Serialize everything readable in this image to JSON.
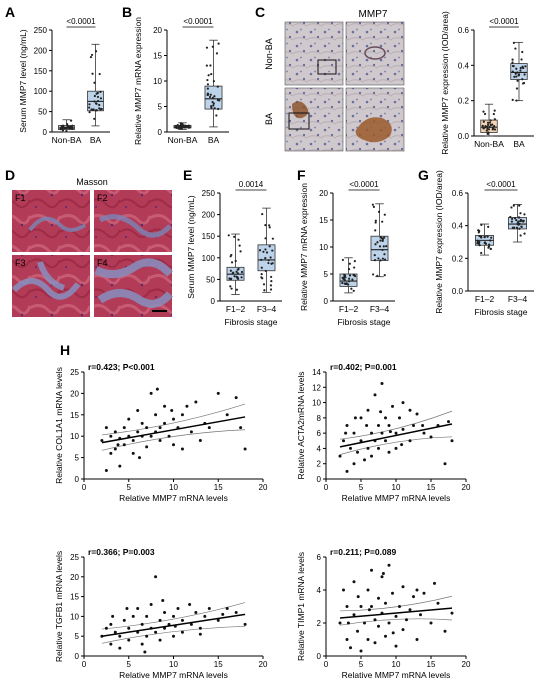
{
  "colors": {
    "box_blue": "#bcd3ea",
    "box_orange": "#f7d4b5",
    "box_stroke": "#333333",
    "dot": "#222222",
    "masson_red": "#b4324d",
    "masson_blue": "#7b86b8",
    "ihc_brown": "#8a4f25",
    "ihc_bg": "#c9c3c8"
  },
  "panel_letters": [
    "A",
    "B",
    "C",
    "D",
    "E",
    "F",
    "G",
    "H"
  ],
  "images": {
    "c_title": "MMP7",
    "c_rows": [
      "Non-BA",
      "BA"
    ],
    "d_title": "Masson",
    "d_labels": [
      "F1",
      "F2",
      "F3",
      "F4"
    ]
  },
  "chart_data": [
    {
      "id": "A",
      "type": "box",
      "ylabel": "Serum MMP7 level (ng/mL)",
      "categories": [
        "Non-BA",
        "BA"
      ],
      "yticks": [
        0,
        50,
        100,
        150,
        200,
        250
      ],
      "ylim": [
        0,
        250
      ],
      "p_text": "<0.0001",
      "box_colors": [
        "#bcd3ea",
        "#bcd3ea"
      ],
      "groups": [
        {
          "name": "Non-BA",
          "min": 0,
          "q1": 6,
          "median": 10,
          "q3": 16,
          "max": 30
        },
        {
          "name": "BA",
          "min": 15,
          "q1": 52,
          "median": 75,
          "q3": 100,
          "max": 215
        }
      ]
    },
    {
      "id": "B",
      "type": "box",
      "ylabel": "Relative MMP7 mRNA expression",
      "categories": [
        "Non-BA",
        "BA"
      ],
      "yticks": [
        0,
        5,
        10,
        15,
        20
      ],
      "ylim": [
        0,
        20
      ],
      "p_text": "<0.0001",
      "box_colors": [
        "#bcd3ea",
        "#bcd3ea"
      ],
      "groups": [
        {
          "name": "Non-BA",
          "min": 0.5,
          "q1": 0.8,
          "median": 1.0,
          "q3": 1.3,
          "max": 1.8
        },
        {
          "name": "BA",
          "min": 1,
          "q1": 4.5,
          "median": 6.5,
          "q3": 9,
          "max": 18
        }
      ]
    },
    {
      "id": "C",
      "type": "box",
      "ylabel": "Relative MMP7 expression (IOD/area)",
      "categories": [
        "Non-BA",
        "BA"
      ],
      "yticks": [
        0.0,
        0.2,
        0.4,
        0.6
      ],
      "ylim": [
        0,
        0.6
      ],
      "p_text": "<0.0001",
      "box_colors": [
        "#f7d4b5",
        "#bcd3ea"
      ],
      "groups": [
        {
          "name": "Non-BA",
          "min": 0.0,
          "q1": 0.02,
          "median": 0.05,
          "q3": 0.09,
          "max": 0.18
        },
        {
          "name": "BA",
          "min": 0.2,
          "q1": 0.32,
          "median": 0.36,
          "q3": 0.41,
          "max": 0.53
        }
      ]
    },
    {
      "id": "E",
      "type": "box",
      "ylabel": "Serum MMP7 level (ng/mL)",
      "xlabel": "Fibrosis stage",
      "categories": [
        "F1–2",
        "F3–4"
      ],
      "yticks": [
        0,
        50,
        100,
        150,
        200,
        250
      ],
      "ylim": [
        0,
        250
      ],
      "p_text": "0.0014",
      "box_colors": [
        "#bcd3ea",
        "#bcd3ea"
      ],
      "groups": [
        {
          "name": "F1–2",
          "min": 15,
          "q1": 48,
          "median": 62,
          "q3": 78,
          "max": 155
        },
        {
          "name": "F3–4",
          "min": 20,
          "q1": 70,
          "median": 95,
          "q3": 130,
          "max": 215
        }
      ]
    },
    {
      "id": "F",
      "type": "box",
      "ylabel": "Relative MMP7 mRNA expression",
      "xlabel": "Fibrosis stage",
      "categories": [
        "F1–2",
        "F3–4"
      ],
      "yticks": [
        0,
        5,
        10,
        15,
        20
      ],
      "ylim": [
        0,
        20
      ],
      "p_text": "<0.0001",
      "box_colors": [
        "#bcd3ea",
        "#bcd3ea"
      ],
      "groups": [
        {
          "name": "F1–2",
          "min": 1.5,
          "q1": 2.7,
          "median": 3.7,
          "q3": 5.0,
          "max": 8
        },
        {
          "name": "F3–4",
          "min": 4.5,
          "q1": 7.5,
          "median": 9.5,
          "q3": 12,
          "max": 18
        }
      ]
    },
    {
      "id": "G",
      "type": "box",
      "ylabel": "Relative MMP7 expression (IOD/area)",
      "xlabel": "Fibrosis stage",
      "categories": [
        "F1–2",
        "F3–4"
      ],
      "yticks": [
        0.0,
        0.2,
        0.4,
        0.6
      ],
      "ylim": [
        0,
        0.6
      ],
      "p_text": "<0.0001",
      "box_colors": [
        "#bcd3ea",
        "#bcd3ea"
      ],
      "groups": [
        {
          "name": "F1–2",
          "min": 0.22,
          "q1": 0.28,
          "median": 0.31,
          "q3": 0.34,
          "max": 0.41
        },
        {
          "name": "F3–4",
          "min": 0.3,
          "q1": 0.38,
          "median": 0.41,
          "q3": 0.45,
          "max": 0.53
        }
      ]
    },
    {
      "id": "H1",
      "type": "scatter",
      "annotation": "r=0.423; P<0.001",
      "xlabel": "Relative MMP7 mRNA levels",
      "ylabel": "Relative COL1A1 mRNA levels",
      "xticks": [
        0,
        5,
        10,
        15,
        20
      ],
      "yticks": [
        0,
        5,
        10,
        15,
        20,
        25
      ],
      "xlim": [
        0,
        20
      ],
      "ylim": [
        0,
        25
      ],
      "fit": {
        "x0": 2,
        "y0": 8.5,
        "x1": 18,
        "y1": 14.5
      },
      "points": [
        [
          2,
          9
        ],
        [
          2.5,
          2
        ],
        [
          3,
          6
        ],
        [
          3,
          10
        ],
        [
          3.5,
          11
        ],
        [
          3.5,
          7
        ],
        [
          4,
          3
        ],
        [
          4,
          9.5
        ],
        [
          4.5,
          12
        ],
        [
          4.5,
          8
        ],
        [
          5,
          10
        ],
        [
          5,
          14
        ],
        [
          5.5,
          9
        ],
        [
          5.5,
          6
        ],
        [
          6,
          11
        ],
        [
          6,
          16
        ],
        [
          6.5,
          10
        ],
        [
          6.5,
          13
        ],
        [
          7,
          12
        ],
        [
          7,
          7.5
        ],
        [
          7.5,
          10
        ],
        [
          7.5,
          20
        ],
        [
          8,
          11
        ],
        [
          8,
          15
        ],
        [
          8.5,
          12
        ],
        [
          8.5,
          9
        ],
        [
          9,
          13
        ],
        [
          9,
          17
        ],
        [
          9.5,
          10
        ],
        [
          10,
          14
        ],
        [
          10,
          8
        ],
        [
          10.5,
          12
        ],
        [
          11,
          15
        ],
        [
          11,
          7
        ],
        [
          12,
          11
        ],
        [
          12.5,
          18
        ],
        [
          13,
          9
        ],
        [
          14,
          12
        ],
        [
          15,
          20
        ],
        [
          16,
          15
        ],
        [
          17,
          19
        ],
        [
          17.5,
          12
        ],
        [
          18,
          7
        ],
        [
          2.5,
          12
        ],
        [
          3.8,
          8
        ],
        [
          6.2,
          5
        ],
        [
          8.2,
          21
        ],
        [
          9.8,
          16
        ],
        [
          11.5,
          17
        ],
        [
          13.5,
          13
        ]
      ]
    },
    {
      "id": "H2",
      "type": "scatter",
      "annotation": "r=0.402; P=0.001",
      "xlabel": "Relative MMP7 mRNA levels",
      "ylabel": "Relative ACTA2mRNA levels",
      "xticks": [
        0,
        5,
        10,
        15,
        20
      ],
      "yticks": [
        0,
        2,
        4,
        6,
        8,
        10,
        12,
        14
      ],
      "xlim": [
        0,
        20
      ],
      "ylim": [
        0,
        14
      ],
      "fit": {
        "x0": 2,
        "y0": 4.2,
        "x1": 18,
        "y1": 7.2
      },
      "points": [
        [
          2,
          3
        ],
        [
          2.5,
          5
        ],
        [
          3,
          1
        ],
        [
          3,
          7
        ],
        [
          3.5,
          4
        ],
        [
          4,
          2
        ],
        [
          4,
          6
        ],
        [
          4.5,
          3.5
        ],
        [
          5,
          5
        ],
        [
          5,
          8
        ],
        [
          5.5,
          2.5
        ],
        [
          6,
          4
        ],
        [
          6,
          9
        ],
        [
          6.5,
          6
        ],
        [
          6.5,
          3
        ],
        [
          7,
          5
        ],
        [
          7,
          11
        ],
        [
          7.5,
          7
        ],
        [
          7.5,
          4
        ],
        [
          8,
          6
        ],
        [
          8,
          12.5
        ],
        [
          8.5,
          5
        ],
        [
          8.5,
          8
        ],
        [
          9,
          7
        ],
        [
          9,
          3.5
        ],
        [
          9.5,
          9.5
        ],
        [
          10,
          6
        ],
        [
          10,
          4
        ],
        [
          10.5,
          8
        ],
        [
          11,
          6.5
        ],
        [
          11,
          10
        ],
        [
          12,
          5
        ],
        [
          12.5,
          7
        ],
        [
          13,
          8.5
        ],
        [
          14,
          6
        ],
        [
          15,
          5.5
        ],
        [
          16,
          7
        ],
        [
          17,
          2
        ],
        [
          17.5,
          7.5
        ],
        [
          18,
          5
        ],
        [
          2.8,
          6
        ],
        [
          4.2,
          8
        ],
        [
          5.8,
          7
        ],
        [
          7.8,
          8.8
        ],
        [
          9.2,
          6.2
        ],
        [
          10.8,
          4.5
        ],
        [
          12,
          9
        ],
        [
          13.8,
          7
        ]
      ]
    },
    {
      "id": "H3",
      "type": "scatter",
      "annotation": "r=0.366; P=0.003",
      "xlabel": "Relative MMP7 mRNA levels",
      "ylabel": "Relative TGFB1 mRNA levels",
      "xticks": [
        0,
        5,
        10,
        15,
        20
      ],
      "yticks": [
        0,
        5,
        10,
        15,
        20,
        25
      ],
      "xlim": [
        0,
        20
      ],
      "ylim": [
        0,
        25
      ],
      "fit": {
        "x0": 2,
        "y0": 5,
        "x1": 18,
        "y1": 10.5
      },
      "points": [
        [
          2,
          5
        ],
        [
          2.5,
          7
        ],
        [
          3,
          3
        ],
        [
          3,
          8
        ],
        [
          3.5,
          6
        ],
        [
          4,
          2
        ],
        [
          4,
          5
        ],
        [
          4.5,
          9
        ],
        [
          5,
          4
        ],
        [
          5,
          7
        ],
        [
          5.5,
          10
        ],
        [
          6,
          6
        ],
        [
          6,
          12
        ],
        [
          6.5,
          3
        ],
        [
          6.5,
          8
        ],
        [
          7,
          5
        ],
        [
          7,
          10
        ],
        [
          7.5,
          7
        ],
        [
          7.5,
          13
        ],
        [
          8,
          6
        ],
        [
          8,
          20
        ],
        [
          8.5,
          9
        ],
        [
          8.5,
          4
        ],
        [
          9,
          11
        ],
        [
          9,
          7
        ],
        [
          9.5,
          8
        ],
        [
          10,
          10
        ],
        [
          10,
          5
        ],
        [
          10.5,
          12
        ],
        [
          11,
          9
        ],
        [
          11,
          6
        ],
        [
          12,
          8
        ],
        [
          12.5,
          11
        ],
        [
          13,
          7
        ],
        [
          13.5,
          10
        ],
        [
          14,
          12
        ],
        [
          15,
          9
        ],
        [
          16,
          12
        ],
        [
          17,
          11
        ],
        [
          18,
          8
        ],
        [
          3.2,
          10
        ],
        [
          4.8,
          12
        ],
        [
          6.8,
          1
        ],
        [
          8.8,
          14
        ],
        [
          10.2,
          7.5
        ],
        [
          11.8,
          13
        ],
        [
          13,
          5.5
        ],
        [
          15.5,
          10.5
        ]
      ]
    },
    {
      "id": "H4",
      "type": "scatter",
      "annotation": "r=0.211; P=0.089",
      "xlabel": "Relative MMP7 mRNA levels",
      "ylabel": "Relative TIMP1 mRNA levels",
      "xticks": [
        0,
        5,
        10,
        15,
        20
      ],
      "yticks": [
        0,
        2,
        4,
        6
      ],
      "xlim": [
        0,
        20
      ],
      "ylim": [
        0,
        6
      ],
      "fit": {
        "x0": 2,
        "y0": 2.3,
        "x1": 18,
        "y1": 2.9
      },
      "points": [
        [
          2,
          2
        ],
        [
          2.5,
          4
        ],
        [
          3,
          1
        ],
        [
          3,
          3
        ],
        [
          3.5,
          0.5
        ],
        [
          4,
          2.5
        ],
        [
          4,
          4.5
        ],
        [
          4.5,
          1.5
        ],
        [
          5,
          3
        ],
        [
          5,
          0.3
        ],
        [
          5.5,
          2
        ],
        [
          6,
          4
        ],
        [
          6,
          1
        ],
        [
          6.5,
          3
        ],
        [
          6.5,
          5.2
        ],
        [
          7,
          2.2
        ],
        [
          7,
          0.8
        ],
        [
          7.5,
          3.5
        ],
        [
          7.5,
          1.8
        ],
        [
          8,
          4.8
        ],
        [
          8,
          2.6
        ],
        [
          8.5,
          1.2
        ],
        [
          8.5,
          3.2
        ],
        [
          9,
          5.5
        ],
        [
          9,
          2
        ],
        [
          9.5,
          3.8
        ],
        [
          10,
          2.4
        ],
        [
          10,
          0.6
        ],
        [
          10.5,
          3
        ],
        [
          11,
          1.6
        ],
        [
          11,
          4.2
        ],
        [
          12,
          2.8
        ],
        [
          12.5,
          3.6
        ],
        [
          13,
          1
        ],
        [
          13.5,
          2.5
        ],
        [
          14,
          3.8
        ],
        [
          15,
          2
        ],
        [
          16,
          3.2
        ],
        [
          17,
          1.5
        ],
        [
          18,
          2.6
        ],
        [
          3.2,
          2
        ],
        [
          4.6,
          3.6
        ],
        [
          6.2,
          2.8
        ],
        [
          8.2,
          5
        ],
        [
          9.6,
          1.4
        ],
        [
          11.5,
          2.2
        ],
        [
          13,
          4
        ],
        [
          15.5,
          4.4
        ]
      ]
    }
  ]
}
